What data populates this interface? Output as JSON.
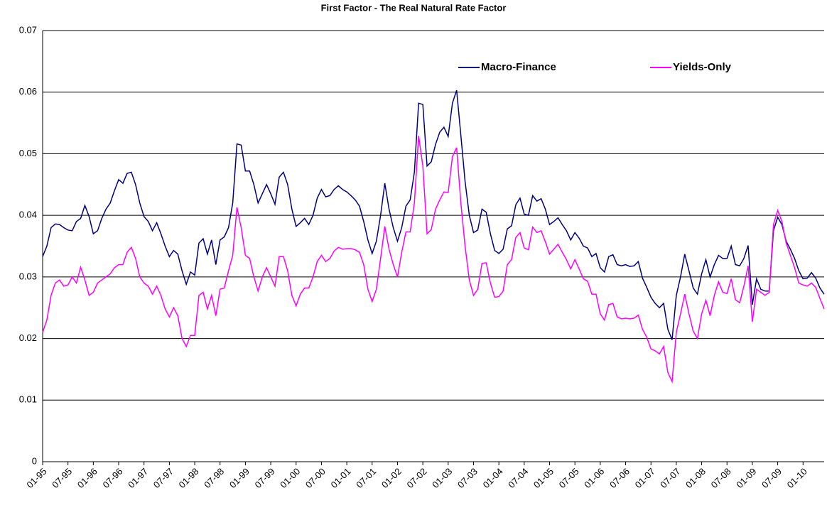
{
  "chart_data": {
    "type": "line",
    "title": "First Factor - The Real Natural Rate Factor",
    "categories": [
      "01-95",
      null,
      null,
      null,
      null,
      null,
      "07-95",
      null,
      null,
      null,
      null,
      null,
      "01-96",
      null,
      null,
      null,
      null,
      null,
      "07-96",
      null,
      null,
      null,
      null,
      null,
      "01-97",
      null,
      null,
      null,
      null,
      null,
      "07-97",
      null,
      null,
      null,
      null,
      null,
      "01-98",
      null,
      null,
      null,
      null,
      null,
      "07-98",
      null,
      null,
      null,
      null,
      null,
      "01-99",
      null,
      null,
      null,
      null,
      null,
      "07-99",
      null,
      null,
      null,
      null,
      null,
      "01-00",
      null,
      null,
      null,
      null,
      null,
      "07-00",
      null,
      null,
      null,
      null,
      null,
      "01-01",
      null,
      null,
      null,
      null,
      null,
      "07-01",
      null,
      null,
      null,
      null,
      null,
      "01-02",
      null,
      null,
      null,
      null,
      null,
      "07-02",
      null,
      null,
      null,
      null,
      null,
      "01-03",
      null,
      null,
      null,
      null,
      null,
      "07-03",
      null,
      null,
      null,
      null,
      null,
      "01-04",
      null,
      null,
      null,
      null,
      null,
      "07-04",
      null,
      null,
      null,
      null,
      null,
      "01-05",
      null,
      null,
      null,
      null,
      null,
      "07-05",
      null,
      null,
      null,
      null,
      null,
      "01-06",
      null,
      null,
      null,
      null,
      null,
      "07-06",
      null,
      null,
      null,
      null,
      null,
      "01-07",
      null,
      null,
      null,
      null,
      null,
      "07-07",
      null,
      null,
      null,
      null,
      null,
      "01-08",
      null,
      null,
      null,
      null,
      null,
      "07-08",
      null,
      null,
      null,
      null,
      null,
      "01-09",
      null,
      null,
      null,
      null,
      null,
      "07-09",
      null,
      null,
      null,
      null,
      null,
      "01-10",
      null,
      null,
      null,
      null,
      null
    ],
    "series": [
      {
        "name": "Macro-Finance",
        "color": "#000080",
        "values": [
          0.0333,
          0.035,
          0.038,
          0.0386,
          0.0385,
          0.038,
          0.0376,
          0.0375,
          0.039,
          0.0395,
          0.0416,
          0.0398,
          0.037,
          0.0375,
          0.0395,
          0.041,
          0.042,
          0.044,
          0.0458,
          0.0452,
          0.0468,
          0.047,
          0.045,
          0.042,
          0.0398,
          0.039,
          0.0375,
          0.0388,
          0.037,
          0.035,
          0.0333,
          0.0343,
          0.0337,
          0.031,
          0.0288,
          0.0308,
          0.0303,
          0.0355,
          0.0362,
          0.0337,
          0.036,
          0.032,
          0.036,
          0.0365,
          0.038,
          0.042,
          0.0516,
          0.0514,
          0.0472,
          0.0472,
          0.045,
          0.042,
          0.0435,
          0.045,
          0.0435,
          0.0418,
          0.0462,
          0.047,
          0.045,
          0.041,
          0.0382,
          0.0388,
          0.0395,
          0.0385,
          0.04,
          0.0428,
          0.0442,
          0.043,
          0.0432,
          0.0442,
          0.0448,
          0.0442,
          0.0438,
          0.0432,
          0.0425,
          0.0415,
          0.039,
          0.036,
          0.0338,
          0.0358,
          0.04,
          0.0452,
          0.041,
          0.038,
          0.0358,
          0.038,
          0.0415,
          0.0425,
          0.047,
          0.0582,
          0.058,
          0.048,
          0.0487,
          0.0515,
          0.0535,
          0.0543,
          0.0528,
          0.0582,
          0.0603,
          0.053,
          0.0455,
          0.04,
          0.0372,
          0.0376,
          0.041,
          0.0405,
          0.037,
          0.0343,
          0.0338,
          0.0345,
          0.0378,
          0.0383,
          0.0417,
          0.0428,
          0.0402,
          0.04,
          0.0432,
          0.0423,
          0.0427,
          0.041,
          0.0385,
          0.039,
          0.0396,
          0.0385,
          0.0375,
          0.036,
          0.0372,
          0.0363,
          0.035,
          0.0347,
          0.0333,
          0.0338,
          0.0315,
          0.0308,
          0.0333,
          0.0336,
          0.032,
          0.0318,
          0.032,
          0.0317,
          0.0318,
          0.0325,
          0.0298,
          0.0283,
          0.0267,
          0.0257,
          0.025,
          0.0257,
          0.0215,
          0.0198,
          0.027,
          0.03,
          0.0337,
          0.031,
          0.0282,
          0.0272,
          0.0305,
          0.0328,
          0.03,
          0.032,
          0.0335,
          0.033,
          0.033,
          0.035,
          0.032,
          0.0318,
          0.033,
          0.0351,
          0.0255,
          0.0297,
          0.028,
          0.0277,
          0.0277,
          0.0375,
          0.0397,
          0.0385,
          0.0358,
          0.0345,
          0.033,
          0.031,
          0.0297,
          0.0298,
          0.0307,
          0.0298,
          0.0282,
          0.0272
        ]
      },
      {
        "name": "Yields-Only",
        "color": "#ff00ff",
        "values": [
          0.021,
          0.023,
          0.027,
          0.029,
          0.0295,
          0.0285,
          0.0287,
          0.03,
          0.029,
          0.0316,
          0.0295,
          0.027,
          0.0275,
          0.029,
          0.0295,
          0.03,
          0.0305,
          0.0315,
          0.032,
          0.032,
          0.034,
          0.0348,
          0.033,
          0.03,
          0.029,
          0.0285,
          0.0272,
          0.0285,
          0.027,
          0.0248,
          0.0235,
          0.025,
          0.0237,
          0.02,
          0.0187,
          0.0205,
          0.0205,
          0.027,
          0.0275,
          0.0248,
          0.027,
          0.0237,
          0.028,
          0.0282,
          0.031,
          0.0335,
          0.0413,
          0.038,
          0.0335,
          0.033,
          0.03,
          0.0277,
          0.03,
          0.0315,
          0.03,
          0.0285,
          0.0333,
          0.0333,
          0.031,
          0.027,
          0.0253,
          0.0272,
          0.0282,
          0.0282,
          0.03,
          0.0325,
          0.0335,
          0.0325,
          0.033,
          0.0342,
          0.0348,
          0.0345,
          0.0346,
          0.0346,
          0.0344,
          0.034,
          0.032,
          0.028,
          0.026,
          0.028,
          0.033,
          0.0382,
          0.0345,
          0.032,
          0.03,
          0.034,
          0.0373,
          0.0373,
          0.042,
          0.0529,
          0.048,
          0.037,
          0.0377,
          0.041,
          0.0425,
          0.0438,
          0.0437,
          0.0495,
          0.051,
          0.042,
          0.035,
          0.0295,
          0.027,
          0.028,
          0.0322,
          0.0323,
          0.029,
          0.0267,
          0.0268,
          0.0277,
          0.032,
          0.0328,
          0.0364,
          0.0372,
          0.0347,
          0.0344,
          0.0381,
          0.0372,
          0.0375,
          0.0357,
          0.0337,
          0.0345,
          0.0353,
          0.034,
          0.0328,
          0.0313,
          0.0328,
          0.0313,
          0.0297,
          0.0293,
          0.0272,
          0.0272,
          0.024,
          0.023,
          0.0255,
          0.0257,
          0.0235,
          0.0232,
          0.0233,
          0.0232,
          0.0233,
          0.0238,
          0.0215,
          0.0202,
          0.0183,
          0.018,
          0.0175,
          0.0187,
          0.0145,
          0.013,
          0.021,
          0.024,
          0.0272,
          0.024,
          0.0212,
          0.02,
          0.024,
          0.0262,
          0.0237,
          0.027,
          0.0292,
          0.0275,
          0.0273,
          0.0297,
          0.0263,
          0.0258,
          0.0285,
          0.0318,
          0.0227,
          0.028,
          0.0275,
          0.027,
          0.0275,
          0.0385,
          0.0408,
          0.039,
          0.0355,
          0.0335,
          0.0315,
          0.029,
          0.0287,
          0.0285,
          0.029,
          0.0283,
          0.0265,
          0.0248
        ]
      }
    ],
    "ylim": [
      0,
      0.07
    ],
    "yticks": [
      0,
      0.01,
      0.02,
      0.03,
      0.04,
      0.05,
      0.06,
      0.07
    ],
    "grid": true
  }
}
